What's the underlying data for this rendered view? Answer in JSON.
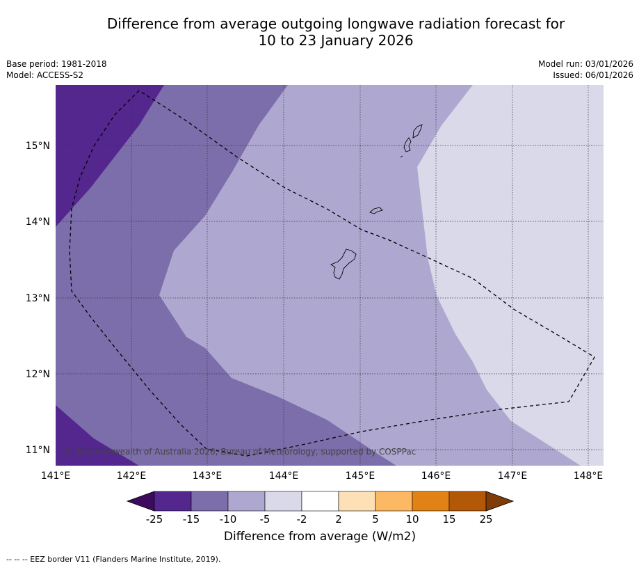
{
  "title_line1": "Difference from average outgoing longwave radiation forecast for",
  "title_line2": "10 to 23 January 2026",
  "base_period": "Base period: 1981-2018",
  "model": "Model: ACCESS-S2",
  "model_run": "Model run: 03/01/2026",
  "issued": "Issued: 06/01/2026",
  "copyright": "© Commonwealth of Australia 2026, Bureau of Meteorology, supported by COSPPac",
  "lon_labels": [
    "141°E",
    "142°E",
    "143°E",
    "144°E",
    "145°E",
    "146°E",
    "147°E",
    "148°E"
  ],
  "lat_labels": [
    "15°N",
    "14°N",
    "13°N",
    "12°N",
    "11°N"
  ],
  "colorbar": {
    "title": "Difference from average (W/m2)",
    "labels": [
      "-25",
      "-15",
      "-10",
      "-5",
      "-2",
      "2",
      "5",
      "10",
      "15",
      "25"
    ],
    "colors": [
      "#3d0b5e",
      "#54278f",
      "#7b6eaa",
      "#aea8d1",
      "#d9d9ea",
      "#ffffff",
      "#fde0b6",
      "#fdb863",
      "#e08214",
      "#b35806",
      "#7f3b08"
    ]
  },
  "legend_note": "--  --  -- EEZ border V11 (Flanders Marine Institute, 2019)."
}
